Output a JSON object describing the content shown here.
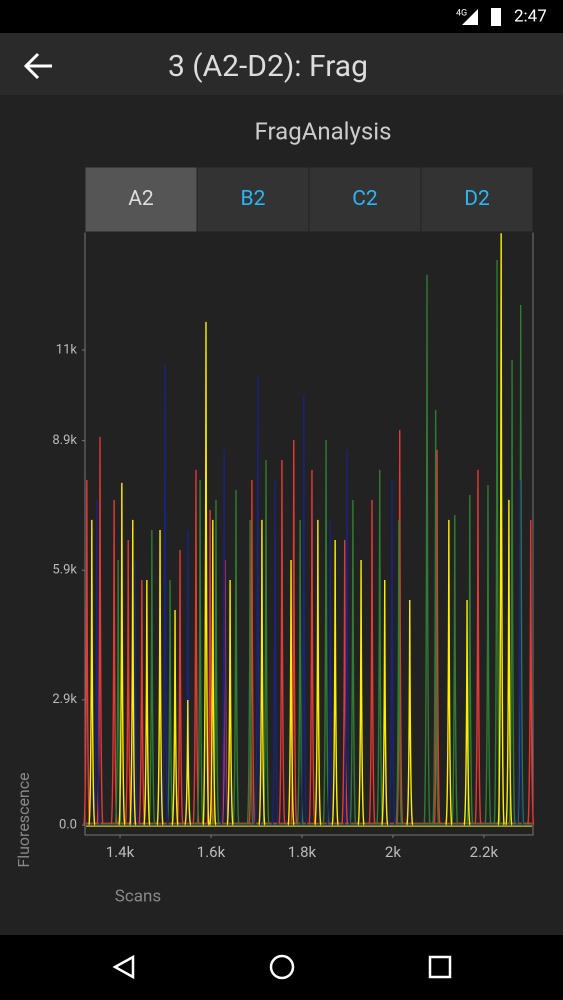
{
  "status_bar": {
    "network": "4G",
    "time": "2:47"
  },
  "app_bar": {
    "title": "3 (A2-D2): Frag"
  },
  "tabs": [
    "A2",
    "B2",
    "C2",
    "D2"
  ],
  "chart_data": {
    "type": "spectrum",
    "title": "FragAnalysis",
    "x_label": "Scans",
    "y_label": "Fluorescence",
    "xlim": [
      1323,
      2308
    ],
    "ylim": [
      -230,
      13730
    ],
    "xticks": [
      {
        "value": 1400,
        "label": "1.4k"
      },
      {
        "value": 1600,
        "label": "1.6k"
      },
      {
        "value": 1800,
        "label": "1.8k"
      },
      {
        "value": 2000,
        "label": "2k"
      },
      {
        "value": 2200,
        "label": "2.2k"
      }
    ],
    "yticks": [
      {
        "value": 0,
        "label": "0.0"
      },
      {
        "value": 2900,
        "label": "2.9k"
      },
      {
        "value": 5900,
        "label": "5.9k"
      },
      {
        "value": 8900,
        "label": "8.9k"
      },
      {
        "value": 11000,
        "label": "11k"
      }
    ],
    "grid": false,
    "series": [
      {
        "color": "#e53935",
        "x": [
          1327,
          1356,
          1387,
          1418,
          1448,
          1532,
          1567,
          1598,
          1631,
          1690,
          1756,
          1782,
          1822,
          1894,
          1954,
          2015,
          2097,
          2187,
          2303
        ],
        "values": [
          7990,
          8986,
          7527,
          6600,
          5674,
          6369,
          8222,
          7295,
          6137,
          7990,
          8453,
          8917,
          8222,
          6600,
          7527,
          9148,
          8685,
          8222,
          7064
        ]
      },
      {
        "color": "#2e7d32",
        "x": [
          1396,
          1470,
          1510,
          1576,
          1611,
          1655,
          1686,
          1721,
          1796,
          1853,
          1912,
          1971,
          2013,
          2075,
          2094,
          2136,
          2169,
          2209,
          2229,
          2262,
          2281
        ],
        "values": [
          6137,
          6832,
          5674,
          7990,
          7527,
          7759,
          7064,
          8453,
          7064,
          8917,
          7527,
          8222,
          7064,
          12738,
          9611,
          7180,
          7643,
          7874,
          13085,
          10769,
          12043
        ]
      },
      {
        "color": "#1a237e",
        "x": [
          1349,
          1433,
          1499,
          1549,
          1629,
          1703,
          1741,
          1804,
          1862,
          1899,
          1998,
          2279
        ],
        "values": [
          7527,
          6137,
          10654,
          6832,
          8685,
          10422,
          7990,
          9959,
          7064,
          8685,
          7990,
          7990
        ]
      },
      {
        "color": "#ffee00",
        "x": [
          1338,
          1404,
          1428,
          1459,
          1488,
          1521,
          1549,
          1589,
          1604,
          1642,
          1712,
          1776,
          1835,
          1873,
          1930,
          1982,
          2037,
          2123,
          2163,
          2238,
          2255
        ],
        "values": [
          7064,
          7921,
          7064,
          5674,
          6832,
          4979,
          2895,
          11649,
          7064,
          5674,
          7064,
          6137,
          7064,
          6600,
          6137,
          5674,
          5211,
          7064,
          5211,
          13700,
          7527
        ]
      }
    ]
  }
}
